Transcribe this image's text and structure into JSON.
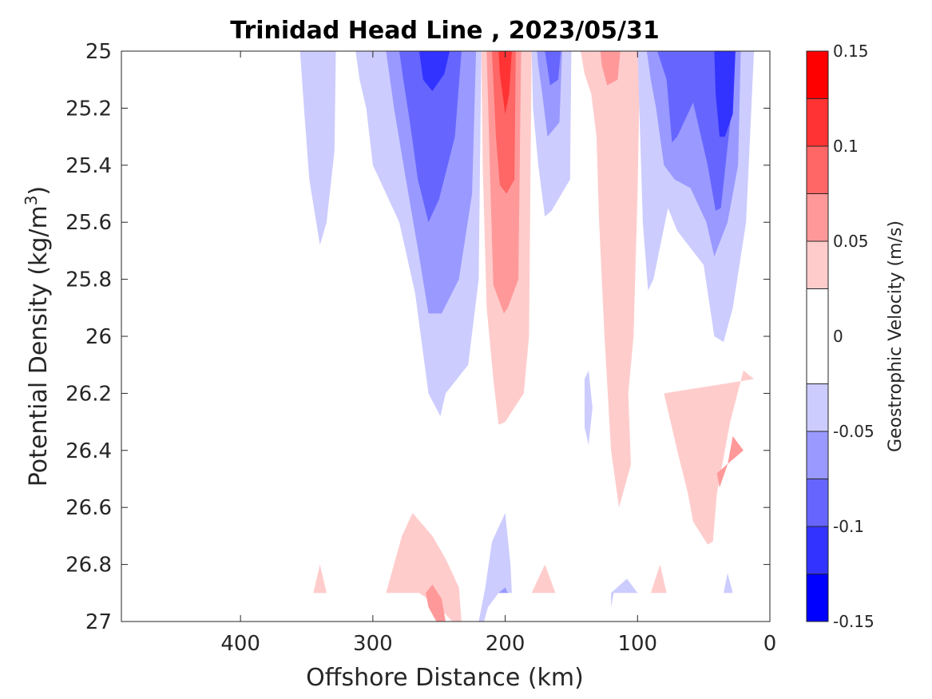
{
  "chart_data": {
    "type": "heatmap",
    "subtype": "filled-contour",
    "title": "Trinidad Head Line , 2023/05/31",
    "xlabel": "Offshore Distance (km)",
    "ylabel": "Potential Density (kg/m",
    "ylabel_sup": "3",
    "ylabel_suffix": ")",
    "x_reversed": true,
    "xlim": [
      0,
      490
    ],
    "ylim": [
      25,
      27
    ],
    "y_reversed": true,
    "x_ticks": [
      400,
      300,
      200,
      100,
      0
    ],
    "y_ticks": [
      "25",
      "25.2",
      "25.4",
      "25.6",
      "25.8",
      "26",
      "26.2",
      "26.4",
      "26.6",
      "26.8",
      "27"
    ],
    "colorbar": {
      "label": "Geostrophic Velocity (m/s)",
      "limits": [
        -0.15,
        0.15
      ],
      "tick_labels": [
        "0.15",
        "0.1",
        "0.05",
        "0",
        "-0.05",
        "-0.1",
        "-0.15"
      ],
      "tick_values": [
        0.15,
        0.1,
        0.05,
        0,
        -0.05,
        -0.1,
        -0.15
      ],
      "levels": [
        -0.15,
        -0.125,
        -0.1,
        -0.075,
        -0.05,
        -0.025,
        0.025,
        0.05,
        0.075,
        0.1,
        0.125,
        0.15
      ],
      "colors": [
        "#0000ff",
        "#3333ff",
        "#6666ff",
        "#9999ff",
        "#ccccff",
        "#ffffff",
        "#ffcccc",
        "#ff9999",
        "#ff6666",
        "#ff3333",
        "#ff0000"
      ]
    },
    "regions": [
      {
        "level": -1,
        "points": [
          [
            355,
            25
          ],
          [
            328,
            25
          ],
          [
            329,
            25.35
          ],
          [
            335,
            25.6
          ],
          [
            340,
            25.68
          ],
          [
            348,
            25.45
          ],
          [
            352,
            25.2
          ]
        ]
      },
      {
        "level": -1,
        "points": [
          [
            313,
            25
          ],
          [
            218,
            25
          ],
          [
            220,
            25.8
          ],
          [
            228,
            26.1
          ],
          [
            245,
            26.2
          ],
          [
            249,
            26.28
          ],
          [
            258,
            26.2
          ],
          [
            268,
            25.85
          ],
          [
            280,
            25.6
          ],
          [
            300,
            25.4
          ],
          [
            305,
            25.2
          ],
          [
            310,
            25.1
          ]
        ]
      },
      {
        "level": -2,
        "points": [
          [
            290,
            25
          ],
          [
            222,
            25
          ],
          [
            225,
            25.5
          ],
          [
            235,
            25.8
          ],
          [
            248,
            25.92
          ],
          [
            258,
            25.92
          ],
          [
            265,
            25.72
          ],
          [
            275,
            25.45
          ],
          [
            284,
            25.2
          ]
        ]
      },
      {
        "level": -3,
        "points": [
          [
            280,
            25
          ],
          [
            233,
            25
          ],
          [
            238,
            25.3
          ],
          [
            250,
            25.52
          ],
          [
            258,
            25.6
          ],
          [
            266,
            25.45
          ],
          [
            272,
            25.25
          ],
          [
            277,
            25.1
          ]
        ]
      },
      {
        "level": -4,
        "points": [
          [
            265,
            25
          ],
          [
            242,
            25
          ],
          [
            246,
            25.08
          ],
          [
            255,
            25.14
          ],
          [
            262,
            25.1
          ]
        ]
      },
      {
        "level": 1,
        "points": [
          [
            218,
            25
          ],
          [
            180,
            25
          ],
          [
            182,
            26
          ],
          [
            186,
            26.2
          ],
          [
            200,
            26.3
          ],
          [
            205,
            26.31
          ],
          [
            209,
            26.15
          ],
          [
            214,
            25.9
          ],
          [
            217,
            25.4
          ]
        ]
      },
      {
        "level": 2,
        "points": [
          [
            214,
            25
          ],
          [
            188,
            25
          ],
          [
            190,
            25.8
          ],
          [
            198,
            25.9
          ],
          [
            201,
            25.92
          ],
          [
            209,
            25.82
          ],
          [
            211,
            25.5
          ]
        ]
      },
      {
        "level": 3,
        "points": [
          [
            210,
            25
          ],
          [
            192,
            25
          ],
          [
            193,
            25.45
          ],
          [
            199,
            25.5
          ],
          [
            204,
            25.47
          ],
          [
            207,
            25.3
          ]
        ]
      },
      {
        "level": 4,
        "points": [
          [
            205,
            25
          ],
          [
            195,
            25
          ],
          [
            197,
            25.15
          ],
          [
            200,
            25.22
          ],
          [
            204,
            25.08
          ]
        ]
      },
      {
        "level": -1,
        "points": [
          [
            180,
            25
          ],
          [
            150,
            25
          ],
          [
            151,
            25.45
          ],
          [
            165,
            25.56
          ],
          [
            170,
            25.58
          ],
          [
            175,
            25.4
          ],
          [
            179,
            25.2
          ]
        ]
      },
      {
        "level": -2,
        "points": [
          [
            176,
            25
          ],
          [
            157,
            25
          ],
          [
            159,
            25.25
          ],
          [
            168,
            25.3
          ],
          [
            172,
            25.15
          ],
          [
            175,
            25.05
          ]
        ]
      },
      {
        "level": -3,
        "points": [
          [
            170,
            25
          ],
          [
            158,
            25
          ],
          [
            160,
            25.1
          ],
          [
            166,
            25.12
          ]
        ]
      },
      {
        "level": 1,
        "points": [
          [
            143,
            25
          ],
          [
            98,
            25
          ],
          [
            100,
            25.5
          ],
          [
            103,
            26
          ],
          [
            107,
            26.2
          ],
          [
            105,
            26.45
          ],
          [
            114,
            26.6
          ],
          [
            120,
            26.4
          ],
          [
            125,
            26
          ],
          [
            129,
            25.6
          ],
          [
            131,
            25.3
          ],
          [
            135,
            25.15
          ],
          [
            140,
            25.08
          ]
        ]
      },
      {
        "level": 2,
        "points": [
          [
            128,
            25
          ],
          [
            113,
            25
          ],
          [
            115,
            25.1
          ],
          [
            123,
            25.12
          ],
          [
            127,
            25.05
          ]
        ]
      },
      {
        "level": -1,
        "points": [
          [
            140,
            26.15
          ],
          [
            137,
            26.12
          ],
          [
            134,
            26.25
          ],
          [
            137,
            26.38
          ],
          [
            140,
            26.32
          ]
        ]
      },
      {
        "level": -1,
        "points": [
          [
            100,
            25
          ],
          [
            12,
            25
          ],
          [
            14,
            25.2
          ],
          [
            18,
            25.6
          ],
          [
            28,
            25.9
          ],
          [
            35,
            26.02
          ],
          [
            42,
            26
          ],
          [
            50,
            25.75
          ],
          [
            70,
            25.63
          ],
          [
            77,
            25.55
          ],
          [
            88,
            25.8
          ],
          [
            92,
            25.84
          ],
          [
            96,
            25.6
          ],
          [
            98,
            25.3
          ]
        ]
      },
      {
        "level": -2,
        "points": [
          [
            93,
            25
          ],
          [
            22,
            25
          ],
          [
            24,
            25.4
          ],
          [
            32,
            25.6
          ],
          [
            42,
            25.72
          ],
          [
            48,
            25.6
          ],
          [
            60,
            25.48
          ],
          [
            72,
            25.45
          ],
          [
            80,
            25.4
          ],
          [
            86,
            25.2
          ],
          [
            90,
            25.1
          ]
        ]
      },
      {
        "level": -3,
        "points": [
          [
            85,
            25
          ],
          [
            28,
            25
          ],
          [
            30,
            25.25
          ],
          [
            37,
            25.55
          ],
          [
            41,
            25.56
          ],
          [
            47,
            25.4
          ],
          [
            58,
            25.18
          ],
          [
            65,
            25.25
          ],
          [
            70,
            25.3
          ],
          [
            74,
            25.32
          ],
          [
            78,
            25.1
          ]
        ]
      },
      {
        "level": -4,
        "points": [
          [
            42,
            25
          ],
          [
            26,
            25
          ],
          [
            28,
            25.22
          ],
          [
            34,
            25.3
          ],
          [
            38,
            25.3
          ],
          [
            41,
            25.15
          ]
        ]
      },
      {
        "level": 1,
        "points": [
          [
            12,
            26.15
          ],
          [
            20,
            26.12
          ],
          [
            30,
            26.3
          ],
          [
            40,
            26.55
          ],
          [
            43,
            26.72
          ],
          [
            47,
            26.73
          ],
          [
            58,
            26.65
          ],
          [
            62,
            26.55
          ],
          [
            70,
            26.4
          ],
          [
            80,
            26.2
          ]
        ]
      },
      {
        "level": 2,
        "points": [
          [
            20,
            26.4
          ],
          [
            28,
            26.35
          ],
          [
            32,
            26.45
          ],
          [
            38,
            26.53
          ],
          [
            40,
            26.48
          ]
        ]
      },
      {
        "level": 1,
        "points": [
          [
            345,
            26.9
          ],
          [
            340,
            26.8
          ],
          [
            335,
            26.9
          ]
        ]
      },
      {
        "level": 1,
        "points": [
          [
            290,
            26.9
          ],
          [
            278,
            26.7
          ],
          [
            270,
            26.62
          ],
          [
            255,
            26.7
          ],
          [
            245,
            26.78
          ],
          [
            235,
            26.88
          ],
          [
            233,
            27
          ],
          [
            240,
            27
          ],
          [
            250,
            26.95
          ],
          [
            265,
            26.9
          ]
        ]
      },
      {
        "level": 2,
        "points": [
          [
            260,
            26.9
          ],
          [
            255,
            26.87
          ],
          [
            248,
            26.92
          ],
          [
            245,
            27
          ],
          [
            252,
            27
          ],
          [
            258,
            26.95
          ]
        ]
      },
      {
        "level": -1,
        "points": [
          [
            220,
            27
          ],
          [
            215,
            26.88
          ],
          [
            210,
            26.72
          ],
          [
            200,
            26.62
          ],
          [
            196,
            26.8
          ],
          [
            195,
            26.9
          ],
          [
            205,
            26.9
          ],
          [
            213,
            26.95
          ],
          [
            216,
            27
          ]
        ]
      },
      {
        "level": -2,
        "points": [
          [
            205,
            26.9
          ],
          [
            200,
            26.88
          ],
          [
            198,
            26.9
          ]
        ]
      },
      {
        "level": 1,
        "points": [
          [
            180,
            26.9
          ],
          [
            170,
            26.8
          ],
          [
            162,
            26.9
          ]
        ]
      },
      {
        "level": -1,
        "points": [
          [
            120,
            26.9
          ],
          [
            108,
            26.85
          ],
          [
            100,
            26.9
          ],
          [
            118,
            26.9
          ],
          [
            120,
            26.95
          ]
        ]
      },
      {
        "level": 1,
        "points": [
          [
            90,
            26.9
          ],
          [
            83,
            26.8
          ],
          [
            78,
            26.9
          ]
        ]
      },
      {
        "level": -1,
        "points": [
          [
            35,
            26.9
          ],
          [
            32,
            26.83
          ],
          [
            28,
            26.9
          ]
        ]
      }
    ]
  }
}
